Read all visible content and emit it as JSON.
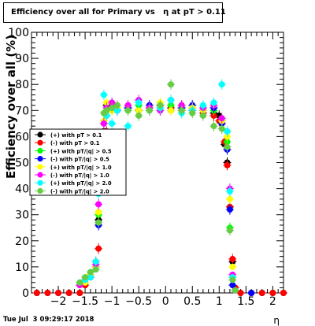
{
  "title": "Efficiency over all for Primary vs   η at pT > 0.11",
  "timestamp": "Tue Jul  3 09:29:17 2018",
  "chart_data": {
    "type": "scatter",
    "title": "Efficiency over all for Primary vs   η at pT > 0.11",
    "xlabel": "η",
    "ylabel": "Efficiency over all (%)",
    "xlim": [
      -2.5,
      2.2
    ],
    "ylim": [
      0,
      100
    ],
    "x_ticks": [
      -2,
      -1.5,
      -1,
      -0.5,
      0,
      0.5,
      1,
      1.5,
      2
    ],
    "x_tick_labels": [
      "−2",
      "−1.5",
      "−1",
      "−0.5",
      "0",
      "0.5",
      "1",
      "1.5",
      "2"
    ],
    "y_ticks": [
      0,
      10,
      20,
      30,
      40,
      50,
      60,
      70,
      80,
      90,
      100
    ],
    "y_tick_labels": [
      "0",
      "10",
      "20",
      "30",
      "40",
      "50",
      "60",
      "70",
      "80",
      "90",
      "100"
    ],
    "grid": false,
    "legend_position": "left",
    "series": [
      {
        "name": "(+) with pT > 0.1",
        "color": "#000000",
        "x": [
          -2.4,
          -2.2,
          -2.0,
          -1.8,
          -1.6,
          -1.5,
          -1.4,
          -1.3,
          -1.25,
          -1.2,
          -1.15,
          -1.1,
          -1.0,
          -0.9,
          -0.7,
          -0.5,
          -0.3,
          -0.1,
          0.1,
          0.3,
          0.5,
          0.7,
          0.9,
          1.0,
          1.05,
          1.1,
          1.15,
          1.2,
          1.25,
          1.3,
          1.4,
          1.6,
          1.8,
          2.0,
          2.2
        ],
        "y": [
          0,
          0,
          0,
          0,
          0,
          3,
          6,
          10,
          28,
          48,
          62,
          72,
          71,
          70,
          71,
          70,
          71,
          72,
          71,
          72,
          71,
          70,
          69,
          68,
          66,
          57,
          50,
          33,
          12,
          1,
          0,
          0,
          0,
          0,
          0
        ]
      },
      {
        "name": "(-) with pT > 0.1",
        "color": "#ff0000",
        "x": [
          -2.4,
          -2.2,
          -2.0,
          -1.8,
          -1.6,
          -1.5,
          -1.4,
          -1.3,
          -1.25,
          -1.2,
          -1.15,
          -1.1,
          -1.0,
          -0.9,
          -0.7,
          -0.5,
          -0.3,
          -0.1,
          0.1,
          0.3,
          0.5,
          0.7,
          0.9,
          1.0,
          1.05,
          1.1,
          1.15,
          1.2,
          1.25,
          1.3,
          1.4,
          1.6,
          1.8,
          2.0,
          2.2
        ],
        "y": [
          0,
          0,
          0,
          0,
          0,
          3,
          6,
          12,
          17,
          49,
          56,
          62,
          71,
          70,
          71,
          70,
          71,
          72,
          71,
          70,
          71,
          69,
          68,
          66,
          65,
          58,
          49,
          33,
          13,
          2,
          0,
          0,
          0,
          0,
          0
        ]
      },
      {
        "name": "(+) with pT/|q| > 0.5",
        "color": "#00ff00",
        "x": [
          -1.6,
          -1.5,
          -1.4,
          -1.3,
          -1.25,
          -1.2,
          -1.15,
          -1.1,
          -1.0,
          -0.9,
          -0.7,
          -0.5,
          -0.3,
          -0.1,
          0.1,
          0.3,
          0.5,
          0.7,
          0.9,
          1.05,
          1.15,
          1.2,
          1.25,
          1.3
        ],
        "y": [
          3,
          4,
          7,
          10,
          30,
          52,
          65,
          70,
          72,
          71,
          70,
          72,
          71,
          70,
          72,
          71,
          70,
          71,
          70,
          67,
          58,
          25,
          6,
          1
        ]
      },
      {
        "name": "(-) with pT/|q| > 0.5",
        "color": "#0000ff",
        "x": [
          -1.6,
          -1.5,
          -1.4,
          -1.3,
          -1.25,
          -1.2,
          -1.15,
          -1.1,
          -1.0,
          -0.9,
          -0.7,
          -0.5,
          -0.3,
          -0.1,
          0.1,
          0.3,
          0.5,
          0.7,
          0.9,
          1.05,
          1.15,
          1.2,
          1.25,
          1.3,
          1.6
        ],
        "y": [
          3,
          5,
          7,
          10,
          26,
          48,
          60,
          68,
          72,
          70,
          71,
          70,
          72,
          71,
          70,
          71,
          72,
          70,
          71,
          65,
          55,
          32,
          3,
          1,
          0
        ]
      },
      {
        "name": "(+) with pT/|q| > 1.0",
        "color": "#ffff00",
        "x": [
          -1.6,
          -1.5,
          -1.4,
          -1.3,
          -1.25,
          -1.2,
          -1.15,
          -1.1,
          -1.0,
          -0.9,
          -0.7,
          -0.5,
          -0.3,
          -0.1,
          0.1,
          0.3,
          0.5,
          0.7,
          0.9,
          1.05,
          1.15,
          1.2,
          1.25,
          1.3
        ],
        "y": [
          3,
          4,
          7,
          10,
          31,
          50,
          66,
          73,
          70,
          71,
          72,
          70,
          71,
          73,
          70,
          72,
          71,
          70,
          72,
          66,
          60,
          36,
          10,
          1
        ]
      },
      {
        "name": "(-) with pT/|q| > 1.0",
        "color": "#ff00ff",
        "x": [
          -1.6,
          -1.5,
          -1.4,
          -1.3,
          -1.25,
          -1.2,
          -1.15,
          -1.1,
          -1.0,
          -0.9,
          -0.7,
          -0.5,
          -0.3,
          -0.1,
          0.1,
          0.3,
          0.5,
          0.7,
          0.9,
          1.05,
          1.15,
          1.2,
          1.25,
          1.3
        ],
        "y": [
          3,
          5,
          6,
          11,
          34,
          53,
          65,
          71,
          73,
          70,
          72,
          74,
          71,
          70,
          74,
          72,
          70,
          71,
          72,
          67,
          62,
          40,
          7,
          1
        ]
      },
      {
        "name": "(+) with pT/|q| > 2.0",
        "color": "#00ffff",
        "x": [
          -1.6,
          -1.5,
          -1.4,
          -1.3,
          -1.25,
          -1.2,
          -1.15,
          -1.1,
          -1.0,
          -0.9,
          -0.7,
          -0.5,
          -0.3,
          -0.1,
          0.1,
          0.3,
          0.5,
          0.7,
          0.9,
          1.05,
          1.15,
          1.2,
          1.25,
          1.3
        ],
        "y": [
          4,
          5,
          6,
          12,
          38,
          55,
          76,
          68,
          65,
          70,
          64,
          73,
          70,
          71,
          74,
          69,
          70,
          72,
          73,
          80,
          62,
          39,
          6,
          1
        ]
      },
      {
        "name": "(-) with pT/|q| > 2.0",
        "color": "#66cc44",
        "x": [
          -1.6,
          -1.5,
          -1.4,
          -1.3,
          -1.25,
          -1.2,
          -1.15,
          -1.1,
          -1.0,
          -0.9,
          -0.7,
          -0.5,
          -0.3,
          -0.1,
          0.1,
          0.3,
          0.5,
          0.7,
          0.9,
          1.05,
          1.15,
          1.2,
          1.25,
          1.3
        ],
        "y": [
          4,
          6,
          8,
          9,
          27,
          50,
          69,
          70,
          71,
          72,
          70,
          68,
          70,
          72,
          80,
          70,
          69,
          68,
          64,
          63,
          56,
          24,
          5,
          1
        ]
      }
    ]
  }
}
